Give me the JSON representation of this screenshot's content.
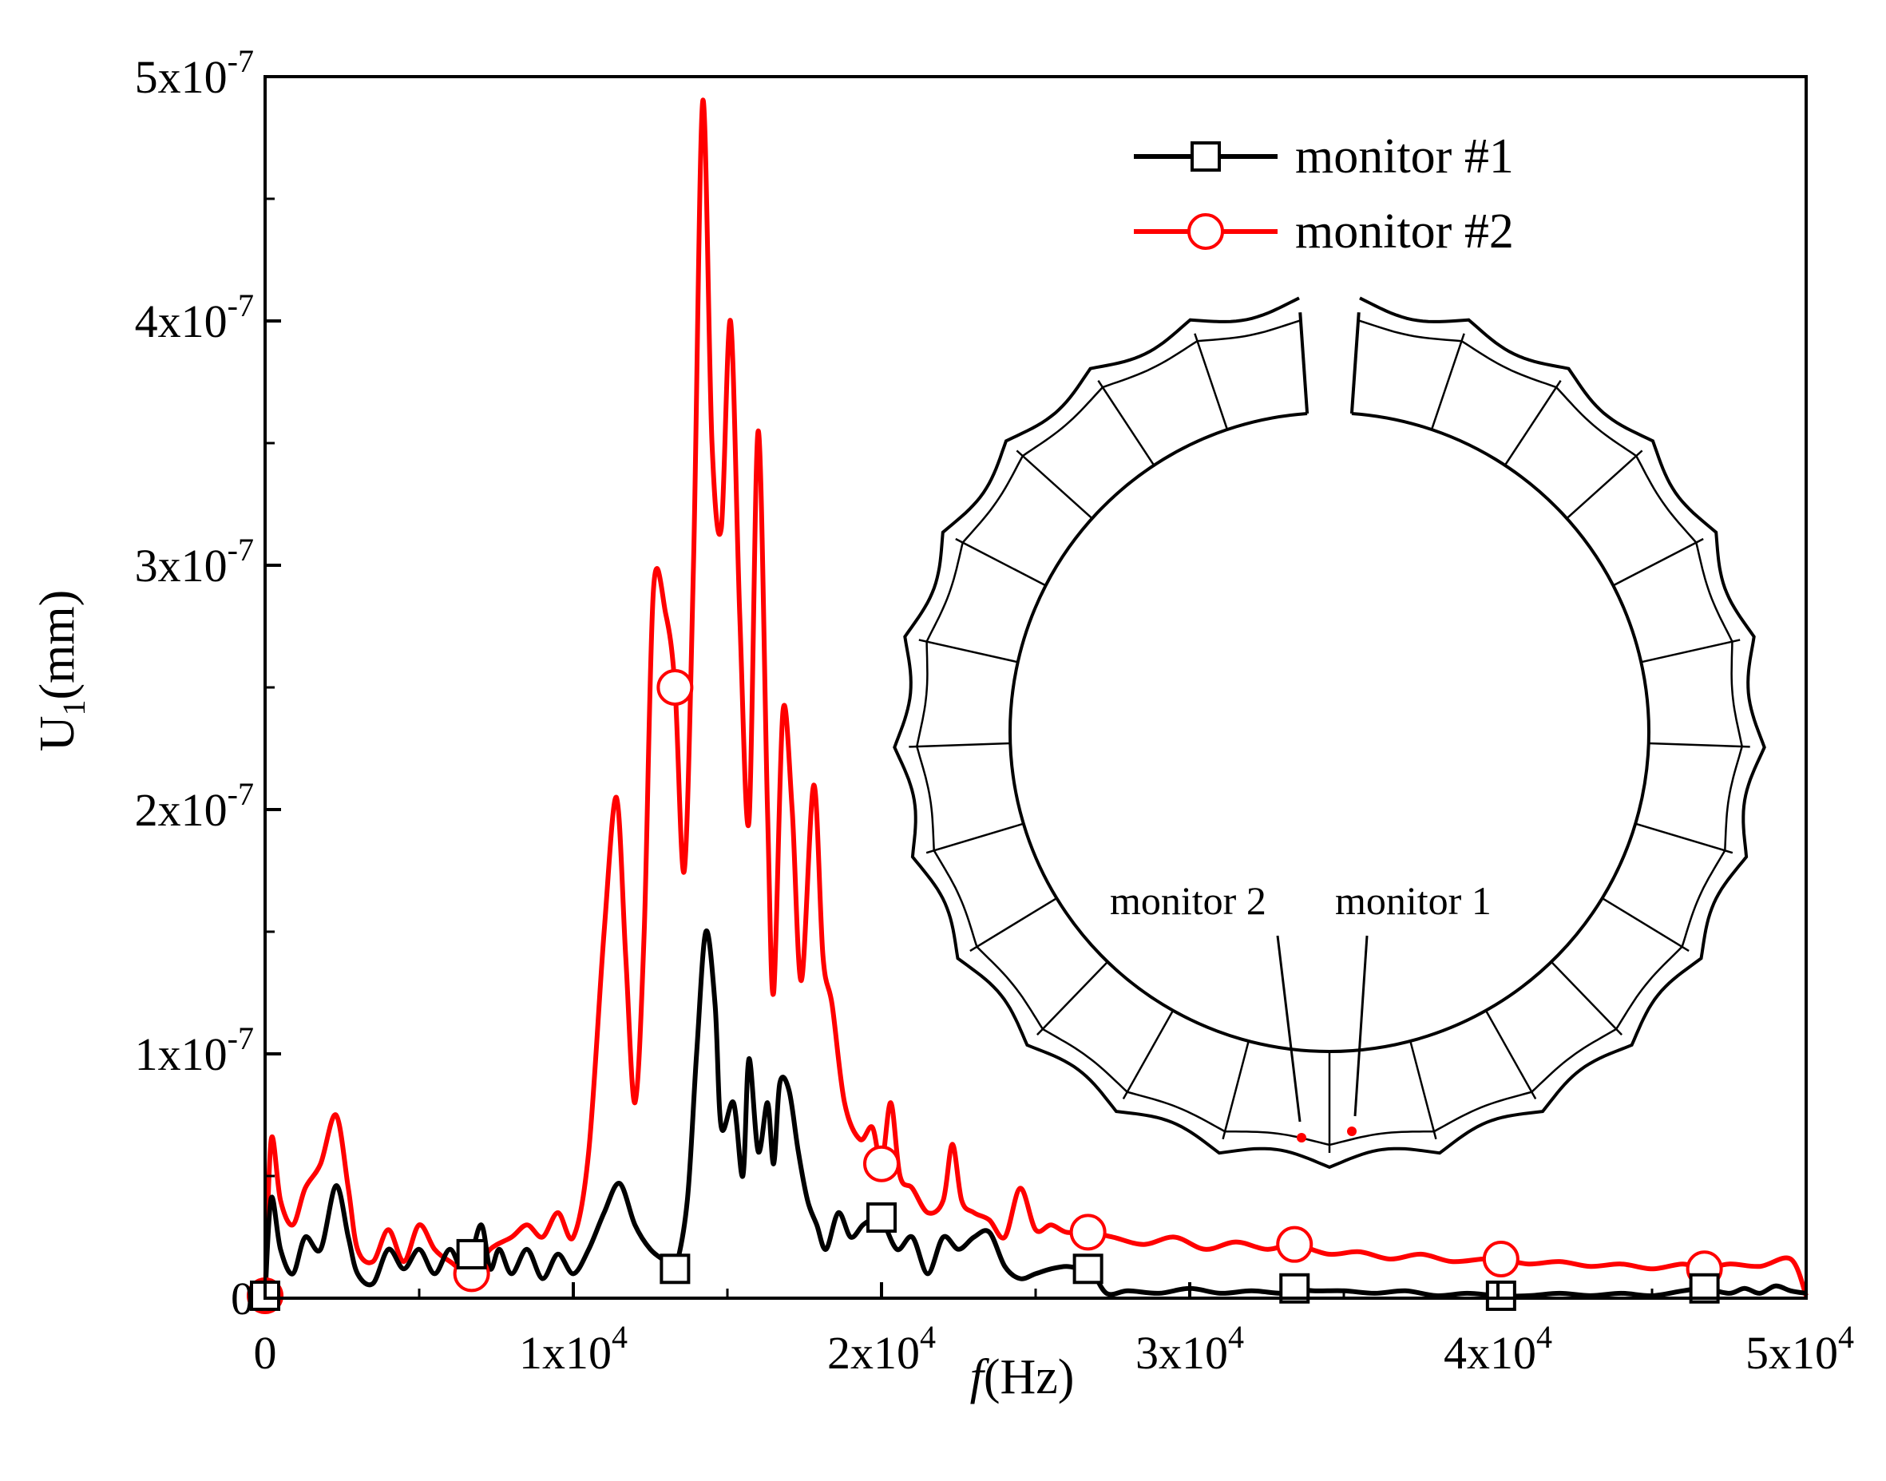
{
  "chart_data": {
    "type": "line",
    "title": "",
    "xlabel": "f",
    "xlabel_unit": "(Hz)",
    "ylabel": "U",
    "ylabel_sub": "1",
    "ylabel_unit": "(mm)",
    "xlim": [
      0,
      50000
    ],
    "ylim": [
      0,
      5e-07
    ],
    "x_ticks": [
      {
        "value": 0,
        "base": "0",
        "exp": ""
      },
      {
        "value": 10000,
        "base": "1x10",
        "exp": "4"
      },
      {
        "value": 20000,
        "base": "2x10",
        "exp": "4"
      },
      {
        "value": 30000,
        "base": "3x10",
        "exp": "4"
      },
      {
        "value": 40000,
        "base": "4x10",
        "exp": "4"
      },
      {
        "value": 50000,
        "base": "5x10",
        "exp": "4"
      }
    ],
    "y_ticks": [
      {
        "value": 0,
        "base": "0",
        "exp": ""
      },
      {
        "value": 1e-07,
        "base": "1x10",
        "exp": "-7"
      },
      {
        "value": 2e-07,
        "base": "2x10",
        "exp": "-7"
      },
      {
        "value": 3e-07,
        "base": "3x10",
        "exp": "-7"
      },
      {
        "value": 4e-07,
        "base": "4x10",
        "exp": "-7"
      },
      {
        "value": 5e-07,
        "base": "5x10",
        "exp": "-7"
      }
    ],
    "legend_position": "top-right",
    "series": [
      {
        "name": "monitor #1",
        "color": "#000000",
        "marker": "square",
        "marker_x": [
          0,
          6700,
          13300,
          20000,
          26700,
          33400,
          40100,
          46700
        ],
        "x": [
          0,
          200,
          500,
          900,
          1300,
          1800,
          2300,
          2700,
          3000,
          3500,
          4000,
          4500,
          5000,
          5500,
          6000,
          6500,
          7000,
          7300,
          7600,
          8000,
          8500,
          9000,
          9500,
          10000,
          10500,
          11000,
          11500,
          12000,
          12500,
          13000,
          13300,
          13700,
          14000,
          14300,
          14600,
          14800,
          15200,
          15500,
          15700,
          16000,
          16300,
          16500,
          16700,
          17000,
          17300,
          17600,
          17900,
          18200,
          18600,
          19000,
          19400,
          19800,
          20000,
          20500,
          21000,
          21500,
          22000,
          22500,
          23000,
          23500,
          24000,
          24500,
          25000,
          25500,
          26000,
          26500,
          26800,
          27300,
          28000,
          29000,
          30000,
          31000,
          32000,
          33000,
          33400,
          34000,
          35000,
          36000,
          37000,
          38000,
          39000,
          40000,
          41000,
          42000,
          43000,
          44000,
          45000,
          46000,
          46700,
          47500,
          48000,
          48500,
          49000,
          49500,
          50000
        ],
        "y": [
          1e-09,
          4.1e-08,
          2e-08,
          1e-08,
          2.5e-08,
          2e-08,
          4.6e-08,
          2.5e-08,
          1e-08,
          6e-09,
          2e-08,
          1.2e-08,
          2e-08,
          1e-08,
          2e-08,
          1e-08,
          3e-08,
          1.2e-08,
          2e-08,
          1e-08,
          2e-08,
          8e-09,
          1.8e-08,
          1e-08,
          2e-08,
          3.5e-08,
          4.7e-08,
          3e-08,
          2e-08,
          1.5e-08,
          1.2e-08,
          4e-08,
          1e-07,
          1.5e-07,
          1.2e-07,
          7e-08,
          8e-08,
          5e-08,
          9.8e-08,
          6e-08,
          8e-08,
          5.5e-08,
          8.8e-08,
          8.5e-08,
          6e-08,
          4e-08,
          3e-08,
          2e-08,
          3.5e-08,
          2.5e-08,
          3e-08,
          3.3e-08,
          3.3e-08,
          2e-08,
          2.5e-08,
          1e-08,
          2.5e-08,
          2e-08,
          2.5e-08,
          2.7e-08,
          1.3e-08,
          8e-09,
          1e-08,
          1.2e-08,
          1.3e-08,
          1.2e-08,
          1.2e-08,
          2e-09,
          3e-09,
          2e-09,
          4e-09,
          2e-09,
          3e-09,
          2e-09,
          4e-09,
          3e-09,
          3e-09,
          2e-09,
          3e-09,
          1e-09,
          2e-09,
          1e-09,
          1e-09,
          2e-09,
          1e-09,
          2e-09,
          1e-09,
          3e-09,
          4e-09,
          2e-09,
          4e-09,
          2e-09,
          5e-09,
          3e-09,
          2e-09
        ]
      },
      {
        "name": "monitor #2",
        "color": "#ff0000",
        "marker": "circle",
        "marker_x": [
          0,
          6700,
          13300,
          20000,
          26700,
          33400,
          40100,
          46700
        ],
        "x": [
          0,
          200,
          500,
          900,
          1300,
          1800,
          2300,
          2700,
          3000,
          3500,
          4000,
          4500,
          5000,
          5500,
          6000,
          6700,
          7300,
          8000,
          8500,
          9000,
          9500,
          10000,
          10500,
          11000,
          11400,
          11700,
          12000,
          12300,
          12600,
          13000,
          13300,
          13600,
          13900,
          14200,
          14500,
          14800,
          15100,
          15400,
          15700,
          16000,
          16300,
          16500,
          16800,
          17100,
          17400,
          17800,
          18100,
          18400,
          18800,
          19300,
          19700,
          20000,
          20300,
          20600,
          21000,
          21500,
          22000,
          22300,
          22600,
          23000,
          23500,
          24000,
          24500,
          25000,
          25500,
          26000,
          26700,
          27500,
          28500,
          29500,
          30500,
          31500,
          32500,
          33400,
          34500,
          35500,
          36500,
          37500,
          38500,
          39500,
          40100,
          41000,
          42000,
          43000,
          44000,
          45000,
          46000,
          46700,
          47500,
          48500,
          49500,
          50000
        ],
        "y": [
          1e-09,
          6.5e-08,
          4e-08,
          3e-08,
          4.5e-08,
          5.5e-08,
          7.5e-08,
          4.5e-08,
          2e-08,
          1.5e-08,
          2.8e-08,
          1.5e-08,
          3e-08,
          2e-08,
          1.5e-08,
          1e-08,
          2e-08,
          2.5e-08,
          3e-08,
          2.5e-08,
          3.5e-08,
          2.5e-08,
          6e-08,
          1.5e-07,
          2.05e-07,
          1.4e-07,
          8e-08,
          1.5e-07,
          2.9e-07,
          2.8e-07,
          2.5e-07,
          1.75e-07,
          3e-07,
          4.9e-07,
          3.5e-07,
          3.15e-07,
          4e-07,
          2.8e-07,
          1.95e-07,
          3.55e-07,
          2e-07,
          1.25e-07,
          2.4e-07,
          2e-07,
          1.3e-07,
          2.1e-07,
          1.4e-07,
          1.2e-07,
          8e-08,
          6.5e-08,
          7e-08,
          5.5e-08,
          8e-08,
          5e-08,
          4.5e-08,
          3.5e-08,
          4e-08,
          6.3e-08,
          4e-08,
          3.5e-08,
          3.2e-08,
          2.5e-08,
          4.5e-08,
          2.8e-08,
          3e-08,
          2.7e-08,
          2.7e-08,
          2.5e-08,
          2.2e-08,
          2.5e-08,
          2e-08,
          2.3e-08,
          2e-08,
          2.2e-08,
          1.8e-08,
          1.9e-08,
          1.6e-08,
          1.8e-08,
          1.5e-08,
          1.6e-08,
          1.6e-08,
          1.4e-08,
          1.5e-08,
          1.3e-08,
          1.4e-08,
          1.2e-08,
          1.4e-08,
          1.2e-08,
          1.4e-08,
          1.3e-08,
          1.6e-08,
          1e-09
        ]
      }
    ],
    "inset": {
      "description_labels": [
        "monitor 2",
        "monitor 1"
      ],
      "segments": 24,
      "gap_angle_deg": 6,
      "point_color": "#ff0000"
    }
  }
}
